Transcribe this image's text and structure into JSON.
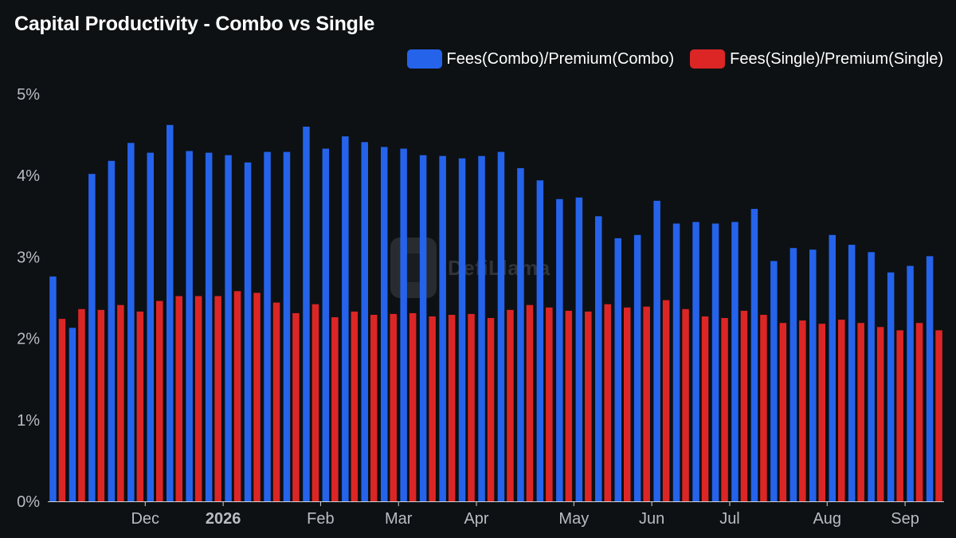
{
  "chart_data": {
    "type": "bar",
    "title": "Capital Productivity - Combo vs Single",
    "xlabel": "",
    "ylabel": "",
    "ylim": [
      0,
      5
    ],
    "y_ticks": [
      "0%",
      "1%",
      "2%",
      "3%",
      "4%",
      "5%"
    ],
    "x_ticks": [
      {
        "label": "Dec",
        "after_bar": 4,
        "bold": false
      },
      {
        "label": "2026",
        "after_bar": 8,
        "bold": true
      },
      {
        "label": "Feb",
        "after_bar": 13,
        "bold": false
      },
      {
        "label": "Mar",
        "after_bar": 17,
        "bold": false
      },
      {
        "label": "Apr",
        "after_bar": 21,
        "bold": false
      },
      {
        "label": "May",
        "after_bar": 26,
        "bold": false
      },
      {
        "label": "Jun",
        "after_bar": 30,
        "bold": false
      },
      {
        "label": "Jul",
        "after_bar": 34,
        "bold": false
      },
      {
        "label": "Aug",
        "after_bar": 39,
        "bold": false
      },
      {
        "label": "Sep",
        "after_bar": 43,
        "bold": false
      }
    ],
    "legend_position": "top-right",
    "grid": false,
    "series": [
      {
        "name": "Fees(Combo)/Premium(Combo)",
        "color": "#2563eb",
        "values": [
          2.76,
          2.13,
          4.02,
          4.18,
          4.4,
          4.28,
          4.62,
          4.3,
          4.28,
          4.25,
          4.16,
          4.29,
          4.29,
          4.6,
          4.33,
          4.48,
          4.41,
          4.35,
          4.33,
          4.25,
          4.24,
          4.21,
          4.24,
          4.29,
          4.09,
          3.94,
          3.71,
          3.73,
          3.5,
          3.23,
          3.27,
          3.69,
          3.41,
          3.43,
          3.41,
          3.43,
          3.59,
          2.95,
          3.11,
          3.09,
          3.27,
          3.15,
          3.06,
          2.81,
          2.89,
          3.01
        ]
      },
      {
        "name": "Fees(Single)/Premium(Single)",
        "color": "#dc2626",
        "values": [
          2.24,
          2.36,
          2.35,
          2.41,
          2.33,
          2.46,
          2.52,
          2.52,
          2.52,
          2.58,
          2.56,
          2.44,
          2.31,
          2.42,
          2.26,
          2.33,
          2.29,
          2.3,
          2.31,
          2.27,
          2.29,
          2.3,
          2.25,
          2.35,
          2.41,
          2.38,
          2.34,
          2.33,
          2.42,
          2.38,
          2.39,
          2.47,
          2.36,
          2.27,
          2.25,
          2.34,
          2.29,
          2.19,
          2.22,
          2.18,
          2.23,
          2.19,
          2.14,
          2.1,
          2.19,
          2.1
        ]
      }
    ]
  },
  "watermark": {
    "text": "DefiLlama"
  },
  "colors": {
    "background": "#0d1114",
    "axis": "#d0d4d8",
    "tick_text": "#b8bdc2"
  }
}
